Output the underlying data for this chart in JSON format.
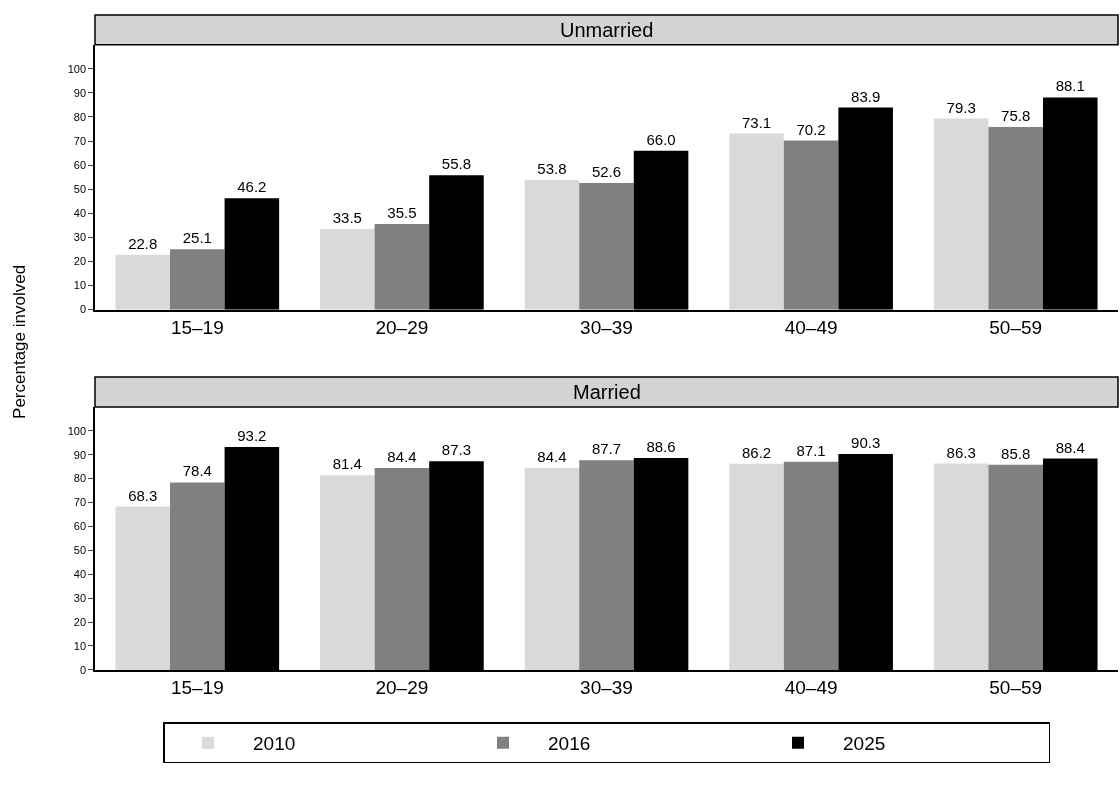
{
  "chart_data": [
    {
      "type": "bar",
      "title": "Unmarried",
      "ylabel": "Percentage involved",
      "categories": [
        "15–19",
        "20–29",
        "30–39",
        "40–49",
        "50–59"
      ],
      "ylim": [
        0,
        110
      ],
      "yticks": [
        0,
        10,
        20,
        30,
        40,
        50,
        60,
        70,
        80,
        90,
        100
      ],
      "grid": false,
      "legend": "bottom",
      "series": [
        {
          "name": "2010",
          "color": "#d9d9d9",
          "values": [
            22.8,
            33.5,
            53.8,
            73.1,
            79.3
          ],
          "value_labels": [
            "22.8",
            "33.5",
            "53.8",
            "73.1",
            "79.3"
          ]
        },
        {
          "name": "2016",
          "color": "#808080",
          "values": [
            25.1,
            35.5,
            52.6,
            70.2,
            75.8
          ],
          "value_labels": [
            "25.1",
            "35.5",
            "52.6",
            "70.2",
            "75.8"
          ]
        },
        {
          "name": "2025",
          "color": "#000000",
          "values": [
            46.2,
            55.8,
            66.0,
            83.9,
            88.1
          ],
          "value_labels": [
            "46.2",
            "55.8",
            "66.0",
            "83.9",
            "88.1"
          ]
        }
      ]
    },
    {
      "type": "bar",
      "title": "Married",
      "categories": [
        "15–19",
        "20–29",
        "30–39",
        "40–49",
        "50–59"
      ],
      "ylim": [
        0,
        110
      ],
      "yticks": [
        0,
        10,
        20,
        30,
        40,
        50,
        60,
        70,
        80,
        90,
        100
      ],
      "grid": false,
      "legend": "bottom",
      "series": [
        {
          "name": "2010",
          "color": "#d9d9d9",
          "values": [
            68.3,
            81.4,
            84.4,
            86.2,
            86.3
          ],
          "value_labels": [
            "68.3",
            "81.4",
            "84.4",
            "86.2",
            "86.3"
          ]
        },
        {
          "name": "2016",
          "color": "#808080",
          "values": [
            78.4,
            84.4,
            87.7,
            87.1,
            85.8
          ],
          "value_labels": [
            "78.4",
            "84.4",
            "87.7",
            "87.1",
            "85.8"
          ]
        },
        {
          "name": "2025",
          "color": "#000000",
          "values": [
            93.2,
            87.3,
            88.6,
            90.3,
            88.4
          ],
          "value_labels": [
            "93.2",
            "87.3",
            "88.6",
            "90.3",
            "88.4"
          ]
        }
      ]
    }
  ]
}
